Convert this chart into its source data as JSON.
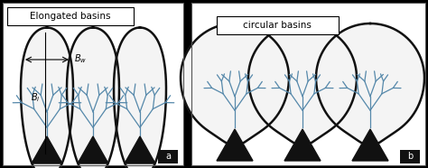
{
  "title_left": "Elongated basins",
  "title_right": "circular basins",
  "label_a": "a",
  "label_b": "b",
  "bg_color": "#000000",
  "basin_fill": "#f4f4f4",
  "basin_edge": "#111111",
  "river_color": "#5588aa",
  "dark_fill": "#111111",
  "text_color": "#000000",
  "figsize": [
    4.74,
    1.86
  ],
  "dpi": 100
}
